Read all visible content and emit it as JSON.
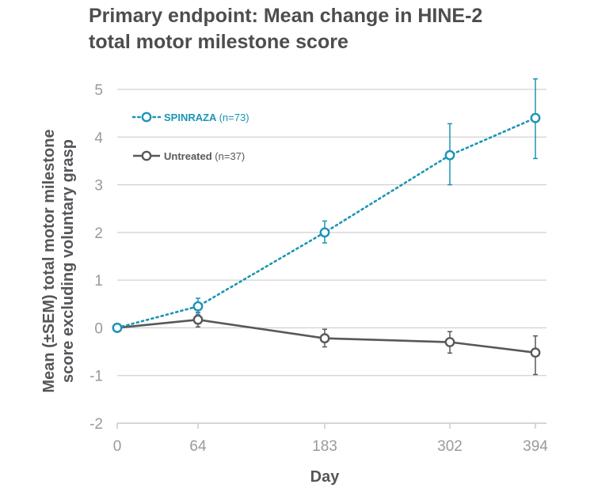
{
  "title_line1": "Primary endpoint: Mean change in HINE-2",
  "title_line2": "total motor milestone score",
  "chart_data": {
    "type": "line",
    "x": [
      0,
      64,
      183,
      302,
      394
    ],
    "xlabel": "Day",
    "ylabel_line1": "Mean (±SEM) total motor milestone",
    "ylabel_line2": "score excluding voluntary grasp",
    "ylim": [
      -2,
      5
    ],
    "yticks": [
      5,
      4,
      3,
      2,
      1,
      0,
      -1,
      -2
    ],
    "grid": true,
    "legend_position": "top-left",
    "series": [
      {
        "name": "SPINRAZA",
        "n_label": "(n=73)",
        "color": "#1b95b4",
        "style": "dotted",
        "values": [
          0,
          0.45,
          2.0,
          3.62,
          4.4
        ],
        "err_low": [
          0,
          0.28,
          1.78,
          3.0,
          3.55
        ],
        "err_high": [
          0,
          0.62,
          2.24,
          4.28,
          5.22
        ]
      },
      {
        "name": "Untreated",
        "n_label": "(n=37)",
        "color": "#58585a",
        "style": "solid",
        "values": [
          0,
          0.17,
          -0.22,
          -0.3,
          -0.52
        ],
        "err_low": [
          0,
          0.02,
          -0.4,
          -0.53,
          -0.98
        ],
        "err_high": [
          0,
          0.32,
          -0.03,
          -0.08,
          -0.17
        ]
      }
    ]
  }
}
